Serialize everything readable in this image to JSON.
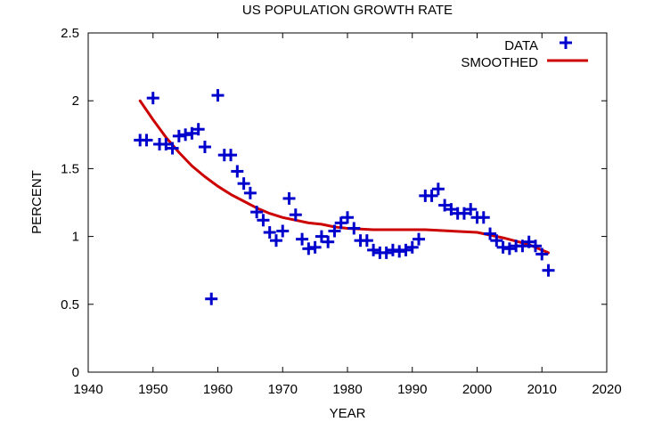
{
  "chart_data": {
    "type": "scatter",
    "title": "US POPULATION GROWTH RATE",
    "xlabel": "YEAR",
    "ylabel": "PERCENT",
    "xlim": [
      1940,
      2020
    ],
    "ylim": [
      0,
      2.5
    ],
    "xticks": [
      1940,
      1950,
      1960,
      1970,
      1980,
      1990,
      2000,
      2010,
      2020
    ],
    "yticks": [
      0,
      0.5,
      1,
      1.5,
      2,
      2.5
    ],
    "ytick_labels": [
      "0",
      "0.5",
      "1",
      "1.5",
      "2",
      "2.5"
    ],
    "grid": false,
    "legend_position": "top-right",
    "series": [
      {
        "name": "DATA",
        "kind": "points",
        "marker": "plus",
        "color": "#0000cc",
        "x": [
          1948,
          1949,
          1950,
          1951,
          1952,
          1953,
          1954,
          1955,
          1956,
          1957,
          1958,
          1959,
          1960,
          1961,
          1962,
          1963,
          1964,
          1965,
          1966,
          1967,
          1968,
          1969,
          1970,
          1971,
          1972,
          1973,
          1974,
          1975,
          1976,
          1977,
          1978,
          1979,
          1980,
          1981,
          1982,
          1983,
          1984,
          1985,
          1986,
          1987,
          1988,
          1989,
          1990,
          1991,
          1992,
          1993,
          1994,
          1995,
          1996,
          1997,
          1998,
          1999,
          2000,
          2001,
          2002,
          2003,
          2004,
          2005,
          2006,
          2007,
          2008,
          2009,
          2010,
          2011
        ],
        "y": [
          1.71,
          1.71,
          2.02,
          1.68,
          1.68,
          1.65,
          1.74,
          1.75,
          1.76,
          1.79,
          1.66,
          0.54,
          2.04,
          1.6,
          1.6,
          1.48,
          1.39,
          1.32,
          1.18,
          1.12,
          1.03,
          0.97,
          1.04,
          1.28,
          1.16,
          0.98,
          0.91,
          0.92,
          1.0,
          0.96,
          1.04,
          1.1,
          1.14,
          1.06,
          0.97,
          0.97,
          0.9,
          0.88,
          0.88,
          0.9,
          0.89,
          0.9,
          0.92,
          0.98,
          1.3,
          1.3,
          1.35,
          1.23,
          1.2,
          1.17,
          1.17,
          1.2,
          1.14,
          1.14,
          1.02,
          0.97,
          0.92,
          0.91,
          0.93,
          0.93,
          0.96,
          0.93,
          0.87,
          0.75
        ]
      },
      {
        "name": "SMOOTHED",
        "kind": "line",
        "color": "#cc0000",
        "x": [
          1948,
          1950,
          1952,
          1954,
          1956,
          1958,
          1960,
          1962,
          1964,
          1966,
          1968,
          1970,
          1972,
          1974,
          1976,
          1978,
          1980,
          1984,
          1988,
          1992,
          1996,
          2000,
          2004,
          2008,
          2011
        ],
        "y": [
          2.0,
          1.86,
          1.73,
          1.62,
          1.52,
          1.44,
          1.37,
          1.31,
          1.26,
          1.21,
          1.17,
          1.14,
          1.12,
          1.1,
          1.09,
          1.07,
          1.06,
          1.05,
          1.05,
          1.05,
          1.04,
          1.03,
          0.99,
          0.94,
          0.88
        ]
      }
    ]
  }
}
